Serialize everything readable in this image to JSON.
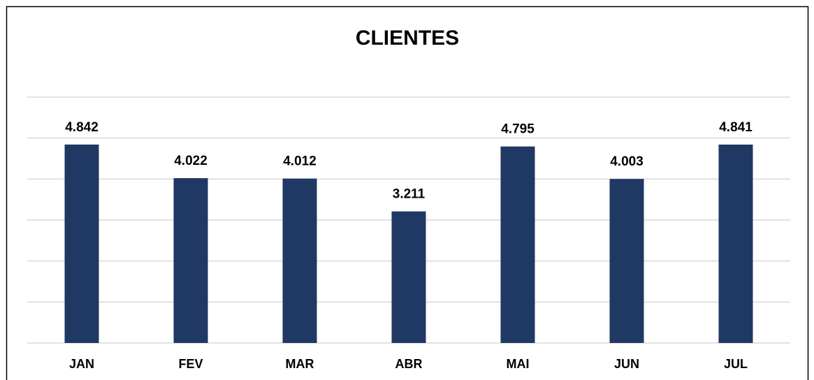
{
  "chart_data": {
    "type": "bar",
    "title": "CLIENTES",
    "categories": [
      "JAN",
      "FEV",
      "MAR",
      "ABR",
      "MAI",
      "JUN",
      "JUL"
    ],
    "values": [
      4842,
      4022,
      4012,
      3211,
      4795,
      4003,
      4841
    ],
    "value_labels": [
      "4.842",
      "4.022",
      "4.012",
      "3.211",
      "4.795",
      "4.003",
      "4.841"
    ],
    "color": "#203864",
    "ylim": [
      0,
      6000
    ],
    "yticks": [
      0,
      1000,
      2000,
      3000,
      4000,
      5000,
      6000
    ],
    "grid": true
  }
}
